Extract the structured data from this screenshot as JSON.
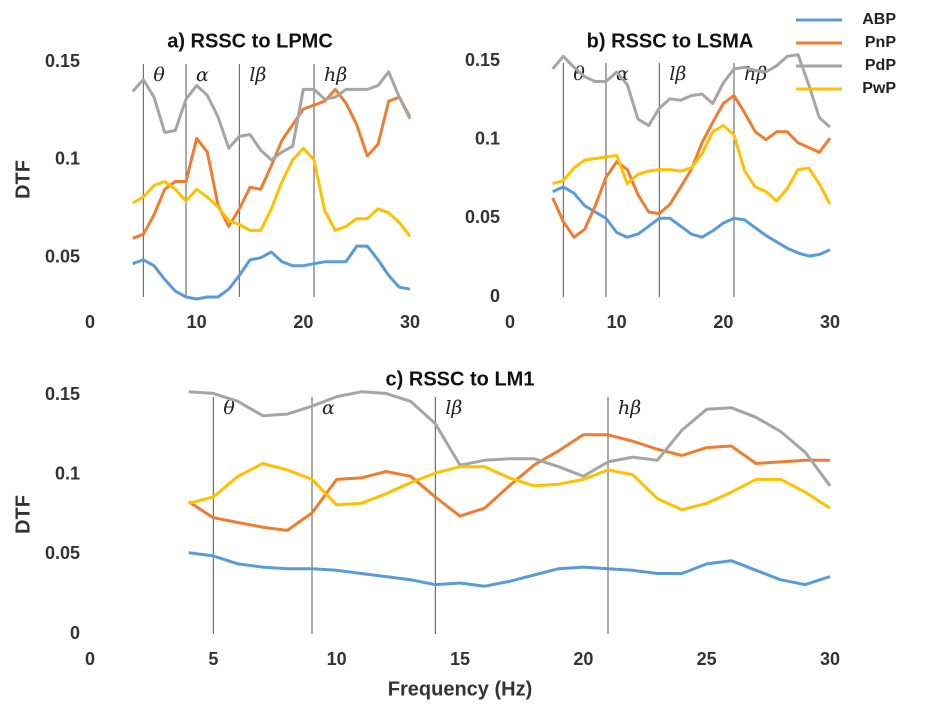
{
  "chart_data": [
    {
      "type": "line",
      "title": "a) RSSC to LPMC",
      "ylabel": "DTF",
      "x": [
        4,
        5,
        6,
        7,
        8,
        9,
        10,
        11,
        12,
        13,
        14,
        15,
        16,
        17,
        18,
        19,
        20,
        21,
        22,
        23,
        24,
        25,
        26,
        27,
        28,
        29,
        30
      ],
      "xlim": [
        0,
        30
      ],
      "xticks": [
        0,
        10,
        20,
        30
      ],
      "ylim": [
        0.03,
        0.15
      ],
      "yticks": [
        0.05,
        0.1,
        0.15
      ],
      "bands": [
        {
          "x": 5,
          "label": "θ"
        },
        {
          "x": 9,
          "label": "α"
        },
        {
          "x": 14,
          "label": "lβ"
        },
        {
          "x": 21,
          "label": "hβ"
        }
      ],
      "series": [
        {
          "name": "ABP",
          "color": "#5b9bd5",
          "values": [
            0.047,
            0.049,
            0.046,
            0.039,
            0.033,
            0.03,
            0.029,
            0.03,
            0.03,
            0.034,
            0.041,
            0.049,
            0.05,
            0.053,
            0.048,
            0.046,
            0.046,
            0.047,
            0.048,
            0.048,
            0.048,
            0.056,
            0.056,
            0.049,
            0.041,
            0.035,
            0.034
          ]
        },
        {
          "name": "PnP",
          "color": "#ed7d31",
          "values": [
            0.06,
            0.062,
            0.072,
            0.085,
            0.089,
            0.089,
            0.111,
            0.104,
            0.077,
            0.066,
            0.075,
            0.086,
            0.085,
            0.097,
            0.11,
            0.118,
            0.126,
            0.128,
            0.13,
            0.136,
            0.129,
            0.118,
            0.102,
            0.108,
            0.13,
            0.132,
            0.122
          ]
        },
        {
          "name": "PdP",
          "color": "#a5a5a5",
          "values": [
            0.135,
            0.141,
            0.132,
            0.114,
            0.115,
            0.131,
            0.138,
            0.133,
            0.122,
            0.106,
            0.112,
            0.113,
            0.105,
            0.1,
            0.104,
            0.107,
            0.136,
            0.136,
            0.131,
            0.132,
            0.136,
            0.136,
            0.136,
            0.138,
            0.145,
            0.132,
            0.121
          ]
        },
        {
          "name": "PwP",
          "color": "#ffc000",
          "values": [
            0.078,
            0.081,
            0.087,
            0.089,
            0.085,
            0.079,
            0.085,
            0.081,
            0.076,
            0.069,
            0.067,
            0.064,
            0.064,
            0.075,
            0.089,
            0.1,
            0.106,
            0.1,
            0.074,
            0.064,
            0.066,
            0.07,
            0.07,
            0.075,
            0.073,
            0.068,
            0.061
          ]
        }
      ]
    },
    {
      "type": "line",
      "title": "b) RSSC to LSMA",
      "x": [
        4,
        5,
        6,
        7,
        8,
        9,
        10,
        11,
        12,
        13,
        14,
        15,
        16,
        17,
        18,
        19,
        20,
        21,
        22,
        23,
        24,
        25,
        26,
        27,
        28,
        29,
        30
      ],
      "xlim": [
        0,
        30
      ],
      "xticks": [
        0,
        10,
        20,
        30
      ],
      "ylim": [
        0,
        0.15
      ],
      "yticks": [
        0,
        0.05,
        0.1,
        0.15
      ],
      "bands": [
        {
          "x": 5,
          "label": "θ"
        },
        {
          "x": 9,
          "label": "α"
        },
        {
          "x": 14,
          "label": "lβ"
        },
        {
          "x": 21,
          "label": "hβ"
        }
      ],
      "series": [
        {
          "name": "ABP",
          "color": "#5b9bd5",
          "values": [
            0.067,
            0.07,
            0.066,
            0.058,
            0.054,
            0.05,
            0.041,
            0.038,
            0.04,
            0.045,
            0.05,
            0.05,
            0.045,
            0.04,
            0.038,
            0.042,
            0.047,
            0.05,
            0.049,
            0.044,
            0.039,
            0.035,
            0.031,
            0.028,
            0.026,
            0.027,
            0.03
          ]
        },
        {
          "name": "PnP",
          "color": "#ed7d31",
          "values": [
            0.063,
            0.048,
            0.038,
            0.043,
            0.058,
            0.076,
            0.086,
            0.081,
            0.065,
            0.054,
            0.053,
            0.059,
            0.07,
            0.081,
            0.098,
            0.111,
            0.123,
            0.128,
            0.117,
            0.105,
            0.1,
            0.105,
            0.105,
            0.098,
            0.095,
            0.092,
            0.101
          ]
        },
        {
          "name": "PdP",
          "color": "#a5a5a5",
          "values": [
            0.145,
            0.153,
            0.146,
            0.14,
            0.137,
            0.137,
            0.143,
            0.135,
            0.113,
            0.109,
            0.12,
            0.126,
            0.125,
            0.128,
            0.129,
            0.123,
            0.136,
            0.145,
            0.146,
            0.144,
            0.143,
            0.147,
            0.153,
            0.154,
            0.135,
            0.114,
            0.108
          ]
        },
        {
          "name": "PwP",
          "color": "#ffc000",
          "values": [
            0.072,
            0.074,
            0.082,
            0.087,
            0.088,
            0.089,
            0.09,
            0.072,
            0.078,
            0.08,
            0.081,
            0.081,
            0.08,
            0.082,
            0.091,
            0.105,
            0.109,
            0.103,
            0.08,
            0.07,
            0.067,
            0.061,
            0.069,
            0.081,
            0.082,
            0.072,
            0.059
          ]
        }
      ]
    },
    {
      "type": "line",
      "title": "c) RSSC to LM1",
      "ylabel": "DTF",
      "xlabel": "Frequency (Hz)",
      "x": [
        4,
        5,
        6,
        7,
        8,
        9,
        10,
        11,
        12,
        13,
        14,
        15,
        16,
        17,
        18,
        19,
        20,
        21,
        22,
        23,
        24,
        25,
        26,
        27,
        28,
        29,
        30
      ],
      "xlim": [
        0,
        30
      ],
      "xticks": [
        0,
        5,
        10,
        15,
        20,
        25,
        30
      ],
      "ylim": [
        0,
        0.15
      ],
      "yticks": [
        0,
        0.05,
        0.1,
        0.15
      ],
      "bands": [
        {
          "x": 5,
          "label": "θ"
        },
        {
          "x": 9,
          "label": "α"
        },
        {
          "x": 14,
          "label": "lβ"
        },
        {
          "x": 21,
          "label": "hβ"
        }
      ],
      "series": [
        {
          "name": "ABP",
          "color": "#5b9bd5",
          "values": [
            0.051,
            0.049,
            0.044,
            0.042,
            0.041,
            0.041,
            0.04,
            0.038,
            0.036,
            0.034,
            0.031,
            0.032,
            0.03,
            0.033,
            0.037,
            0.041,
            0.042,
            0.041,
            0.04,
            0.038,
            0.038,
            0.044,
            0.046,
            0.04,
            0.034,
            0.031,
            0.036
          ]
        },
        {
          "name": "PnP",
          "color": "#ed7d31",
          "values": [
            0.083,
            0.073,
            0.07,
            0.067,
            0.065,
            0.076,
            0.097,
            0.098,
            0.102,
            0.099,
            0.086,
            0.074,
            0.079,
            0.093,
            0.106,
            0.115,
            0.125,
            0.125,
            0.121,
            0.116,
            0.112,
            0.117,
            0.118,
            0.107,
            0.108,
            0.109,
            0.109
          ]
        },
        {
          "name": "PdP",
          "color": "#a5a5a5",
          "values": [
            0.152,
            0.151,
            0.146,
            0.137,
            0.138,
            0.143,
            0.149,
            0.152,
            0.151,
            0.146,
            0.132,
            0.106,
            0.109,
            0.11,
            0.11,
            0.105,
            0.099,
            0.108,
            0.111,
            0.109,
            0.128,
            0.141,
            0.142,
            0.136,
            0.127,
            0.114,
            0.093
          ]
        },
        {
          "name": "PwP",
          "color": "#ffc000",
          "values": [
            0.082,
            0.086,
            0.099,
            0.107,
            0.103,
            0.097,
            0.081,
            0.082,
            0.088,
            0.095,
            0.101,
            0.105,
            0.105,
            0.098,
            0.093,
            0.094,
            0.097,
            0.103,
            0.1,
            0.085,
            0.078,
            0.082,
            0.089,
            0.097,
            0.097,
            0.089,
            0.079
          ]
        }
      ]
    }
  ]
}
